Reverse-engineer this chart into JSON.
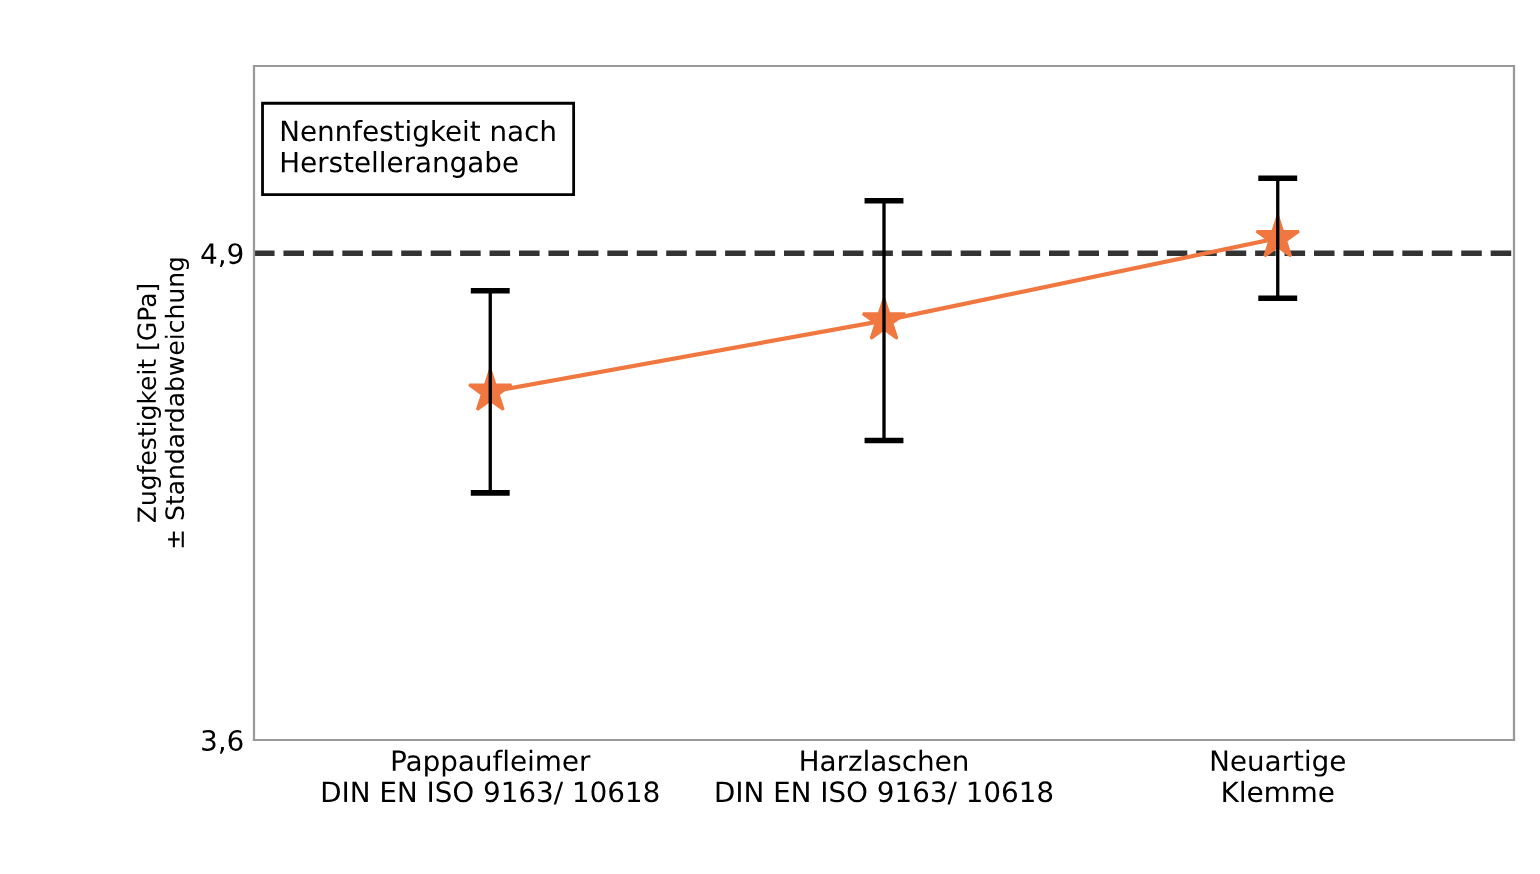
{
  "chart_data": {
    "type": "line",
    "ylabel": "Zugfestigkeit [GPa]\n± Standardabweichung",
    "categories": [
      "Pappaufleimer\nDIN EN ISO 9163/ 10618",
      "Harzlaschen\nDIN EN ISO 9163/ 10618",
      "Neuartige\nKlemme"
    ],
    "series": [
      {
        "color": "#f07840",
        "values": [
          4.53,
          4.72,
          4.94
        ],
        "errors": [
          0.27,
          0.32,
          0.16
        ]
      }
    ],
    "ylim": [
      3.6,
      5.4
    ],
    "yticks": [
      {
        "value": 3.6,
        "label": "3,6"
      },
      {
        "value": 4.9,
        "label": "4,9"
      }
    ],
    "ref_lines": [
      {
        "axis": "y",
        "value": 4.9,
        "label": "Nennfestigkeit nach\nHerstellerangabe",
        "color": "#333333",
        "line_style": "dashed"
      }
    ],
    "marker": "star",
    "line_style": "solid",
    "grid": false,
    "legend": false
  }
}
